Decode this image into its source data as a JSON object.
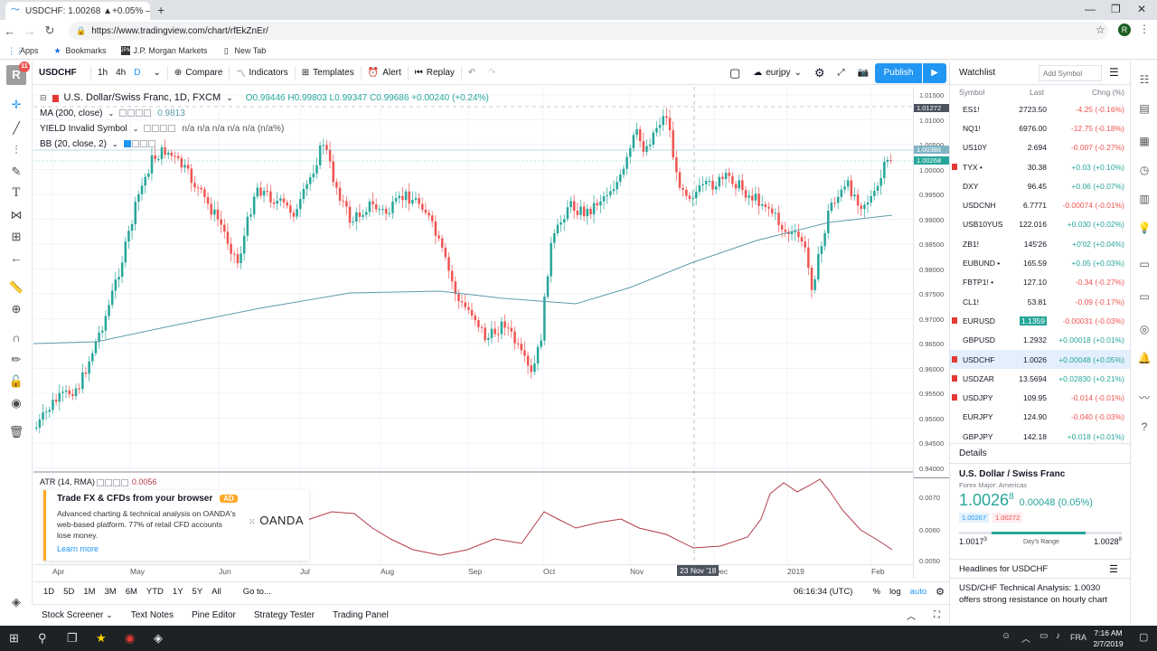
{
  "browser": {
    "tab_title": "USDCHF: 1.00268 ▲+0.05% — u",
    "url": "https://www.tradingview.com/chart/rfEkZnEr/",
    "bookmarks": [
      "Apps",
      "Bookmarks",
      "J.P. Morgan Markets",
      "New Tab"
    ]
  },
  "toolbar": {
    "symbol": "USDCHF",
    "interval_1h": "1h",
    "interval_4h": "4h",
    "interval_d": "D",
    "compare": "Compare",
    "indicators": "Indicators",
    "templates": "Templates",
    "alert": "Alert",
    "replay": "Replay",
    "layout_name": "eurjpy",
    "publish": "Publish"
  },
  "legend": {
    "title": "U.S. Dollar/Swiss Franc, 1D, FXCM",
    "ohlc": "O0.99446  H0.99803  L0.99347  C0.99686  +0.00240 (+0.24%)",
    "ma": "MA (200, close)",
    "ma_value": "0.9813",
    "yield": "YIELD Invalid Symbol",
    "yield_values": "n/a  n/a  n/a  n/a  n/a (n/a%)",
    "bb": "BB (20, close, 2)",
    "atr": "ATR (14, RMA)",
    "atr_value": "0.0056"
  },
  "ad": {
    "title": "Trade FX & CFDs from your browser",
    "badge": "AD",
    "body": "Advanced charting & technical analysis on OANDA's web-based platform. 77% of retail CFD accounts lose money.",
    "link": "Learn more",
    "brand": "OANDA"
  },
  "price_scale": [
    "1.01500",
    "1.01000",
    "1.00500",
    "1.00000",
    "0.99500",
    "0.99000",
    "0.98500",
    "0.98000",
    "0.97500",
    "0.97000",
    "0.96500",
    "0.96000",
    "0.95500",
    "0.95000",
    "0.94500",
    "0.94000"
  ],
  "price_badges": {
    "high": "1.01272",
    "bb": "1.00386",
    "last": "1.00268"
  },
  "atr_scale": [
    "0.0070",
    "0.0060",
    "0.0050"
  ],
  "time_axis": [
    "Apr",
    "May",
    "Jun",
    "Jul",
    "Aug",
    "Sep",
    "Oct",
    "Nov",
    "Dec",
    "2019",
    "Feb"
  ],
  "crosshair_date": "23 Nov '18",
  "ranges": [
    "1D",
    "5D",
    "1M",
    "3M",
    "6M",
    "YTD",
    "1Y",
    "5Y",
    "All",
    "Go to..."
  ],
  "clock": "06:16:34 (UTC)",
  "scale_opts": [
    "%",
    "log",
    "auto"
  ],
  "footer_tabs": [
    "Stock Screener",
    "Text Notes",
    "Pine Editor",
    "Strategy Tester",
    "Trading Panel"
  ],
  "watchlist": {
    "title": "Watchlist",
    "search_placeholder": "Add Symbol",
    "cols": [
      "Symbol",
      "Last",
      "Chng (%)"
    ],
    "rows": [
      {
        "sym": "ES1!",
        "last": "2723.50",
        "chg": "-4.25 (-0.16%)",
        "dir": "neg",
        "flag": ""
      },
      {
        "sym": "NQ1!",
        "last": "6976.00",
        "chg": "-12.75 (-0.18%)",
        "dir": "neg",
        "flag": ""
      },
      {
        "sym": "US10Y",
        "last": "2.694",
        "chg": "-0.007 (-0.27%)",
        "dir": "neg",
        "flag": ""
      },
      {
        "sym": "TYX •",
        "last": "30.38",
        "chg": "+0.03 (+0.10%)",
        "dir": "pos",
        "flag": "#e53935"
      },
      {
        "sym": "DXY",
        "last": "96.45",
        "chg": "+0.06 (+0.07%)",
        "dir": "pos",
        "flag": ""
      },
      {
        "sym": "USDCNH",
        "last": "6.7771",
        "chg": "-0.00074 (-0.01%)",
        "dir": "neg",
        "flag": ""
      },
      {
        "sym": "USB10YUS",
        "last": "122.016",
        "chg": "+0.030 (+0.02%)",
        "dir": "pos",
        "flag": ""
      },
      {
        "sym": "ZB1!",
        "last": "145'26",
        "chg": "+0'02 (+0.04%)",
        "dir": "pos",
        "flag": ""
      },
      {
        "sym": "EUBUND •",
        "last": "165.59",
        "chg": "+0.05 (+0.03%)",
        "dir": "pos",
        "flag": ""
      },
      {
        "sym": "FBTP1! •",
        "last": "127.10",
        "chg": "-0.34 (-0.27%)",
        "dir": "neg",
        "flag": ""
      },
      {
        "sym": "CL1!",
        "last": "53.81",
        "chg": "-0.09 (-0.17%)",
        "dir": "neg",
        "flag": ""
      },
      {
        "sym": "EURUSD",
        "last": "1.1359",
        "chg": "-0.00031 (-0.03%)",
        "dir": "neg",
        "flag": "#e53935",
        "hl": true
      },
      {
        "sym": "GBPUSD",
        "last": "1.2932",
        "chg": "+0.00018 (+0.01%)",
        "dir": "pos",
        "flag": ""
      },
      {
        "sym": "USDCHF",
        "last": "1.0026",
        "chg": "+0.00048 (+0.05%)",
        "dir": "pos",
        "flag": "#e53935",
        "active": true
      },
      {
        "sym": "USDZAR",
        "last": "13.5694",
        "chg": "+0.02830 (+0.21%)",
        "dir": "pos",
        "flag": "#e53935"
      },
      {
        "sym": "USDJPY",
        "last": "109.95",
        "chg": "-0.014 (-0.01%)",
        "dir": "neg",
        "flag": "#e53935"
      },
      {
        "sym": "EURJPY",
        "last": "124.90",
        "chg": "-0.040 (-0.03%)",
        "dir": "neg",
        "flag": ""
      },
      {
        "sym": "GBPJPY",
        "last": "142.18",
        "chg": "+0.018 (+0.01%)",
        "dir": "pos",
        "flag": ""
      }
    ]
  },
  "details": {
    "header": "Details",
    "name": "U.S. Dollar / Swiss Franc",
    "category": "Forex Major: Americas",
    "price": "1.0026",
    "price_sup": "8",
    "change": "0.00048 (0.05%)",
    "bid": "1.00267",
    "ask": "1.00272",
    "low": "1.0017",
    "low_sup": "3",
    "range_label": "Day's Range",
    "high": "1.0028",
    "high_sup": "8",
    "range_position": 0.78
  },
  "headlines": {
    "header": "Headlines for USDCHF",
    "item": "USD/CHF Technical Analysis: 1.0030 offers strong resistance on hourly chart"
  },
  "taskbar": {
    "lang": "FRA",
    "time": "7:16 AM",
    "date": "2/7/2019"
  },
  "colors": {
    "up": "#26a69a",
    "down": "#ef5350",
    "accent": "#2196f3",
    "ma": "#5d9cab",
    "atr": "#b23a48"
  }
}
